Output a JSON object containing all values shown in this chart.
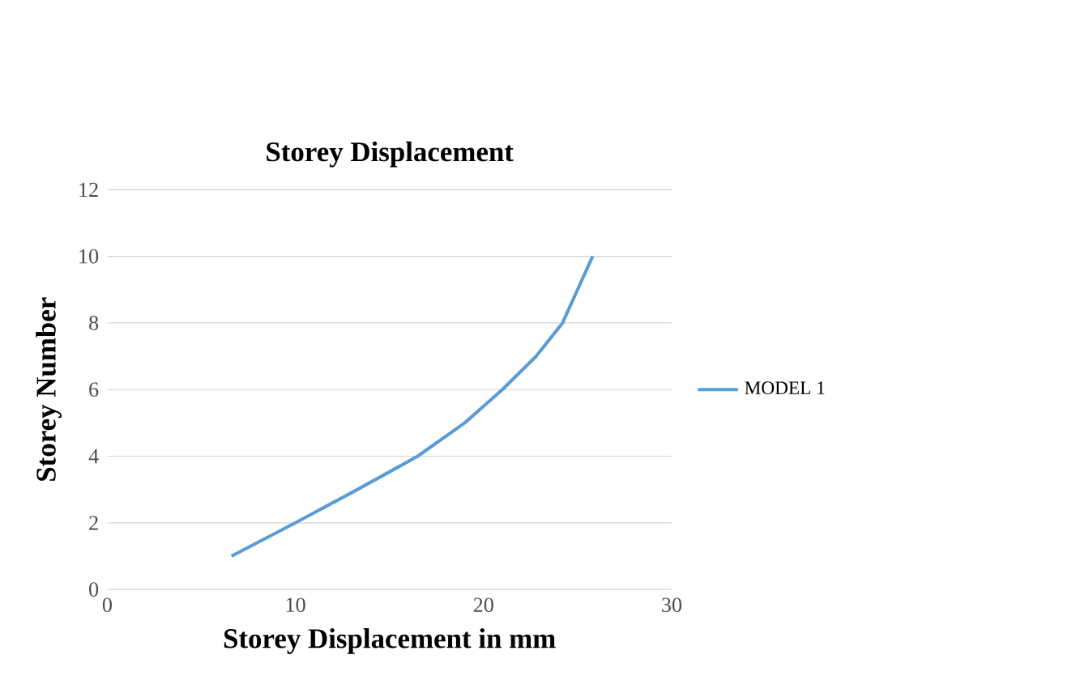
{
  "chart_data": {
    "type": "line",
    "title": "Storey Displacement",
    "xlabel": "Storey Displacement in mm",
    "ylabel": "Storey Number",
    "x": [
      6.6,
      10.0,
      13.3,
      16.5,
      19.0,
      21.0,
      22.8,
      24.2,
      25.0,
      25.8
    ],
    "series": [
      {
        "name": "MODEL 1",
        "color": "#5b9bd5",
        "values": [
          1,
          2,
          3,
          4,
          5,
          6,
          7,
          8,
          9,
          10
        ]
      }
    ],
    "xlim": [
      0,
      30
    ],
    "xticks": [
      0,
      10,
      20,
      30
    ],
    "ylim": [
      0,
      12
    ],
    "yticks": [
      0,
      2,
      4,
      6,
      8,
      10,
      12
    ],
    "grid": "y",
    "legend": "right",
    "marker": "none",
    "line_style": "solid"
  }
}
